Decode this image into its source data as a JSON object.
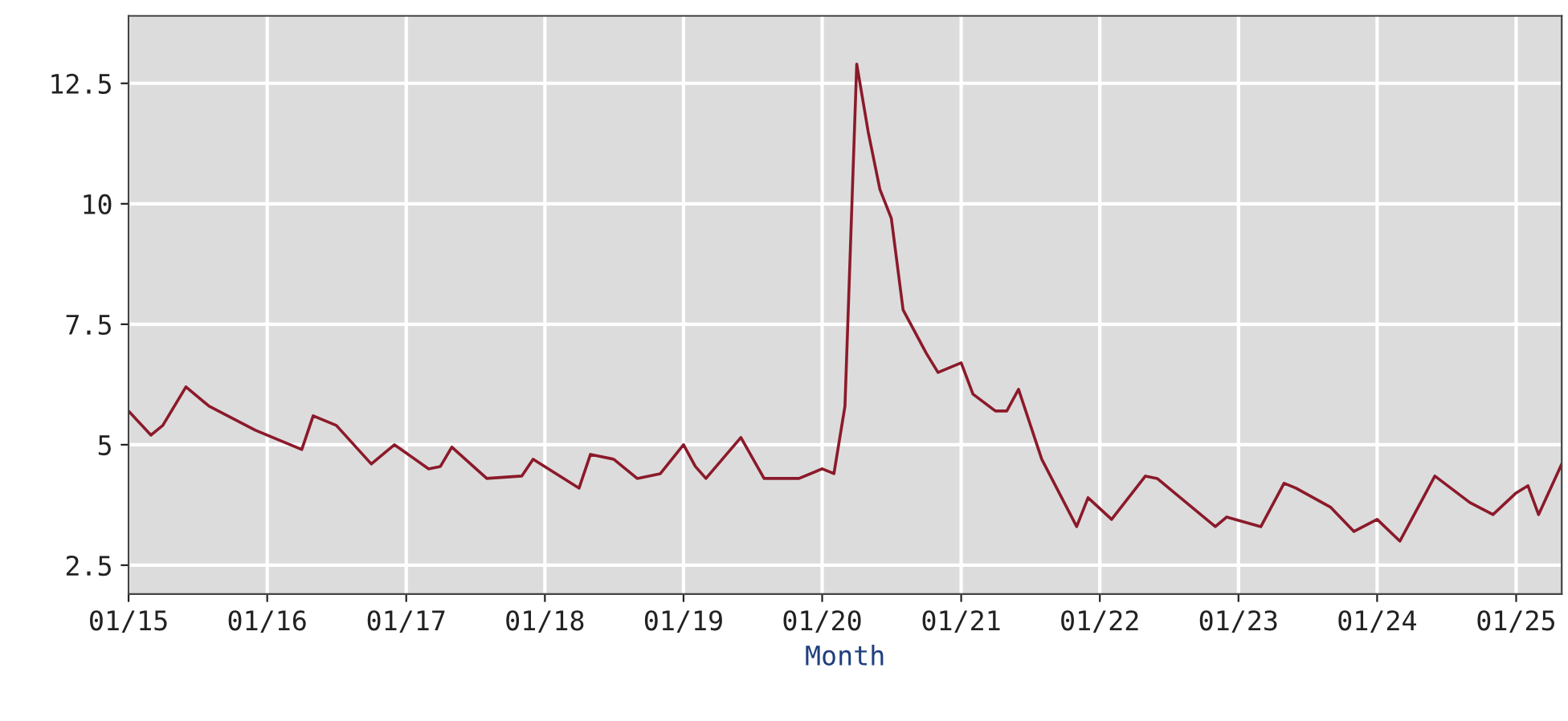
{
  "chart_data": {
    "type": "line",
    "xlabel": "Month",
    "x": [
      "2015-01",
      "2015-03",
      "2015-04",
      "2015-06",
      "2015-08",
      "2015-12",
      "2016-04",
      "2016-05",
      "2016-07",
      "2016-10",
      "2016-12",
      "2017-03",
      "2017-04",
      "2017-05",
      "2017-08",
      "2017-11",
      "2017-12",
      "2018-04",
      "2018-05",
      "2018-07",
      "2018-09",
      "2018-11",
      "2019-01",
      "2019-02",
      "2019-03",
      "2019-06",
      "2019-08",
      "2019-11",
      "2020-01",
      "2020-02",
      "2020-03",
      "2020-04",
      "2020-05",
      "2020-06",
      "2020-07",
      "2020-08",
      "2020-10",
      "2020-11",
      "2021-01",
      "2021-02",
      "2021-04",
      "2021-05",
      "2021-06",
      "2021-08",
      "2021-11",
      "2021-12",
      "2022-02",
      "2022-05",
      "2022-06",
      "2022-08",
      "2022-11",
      "2022-12",
      "2023-03",
      "2023-05",
      "2023-06",
      "2023-09",
      "2023-11",
      "2024-01",
      "2024-03",
      "2024-06",
      "2024-09",
      "2024-11",
      "2025-01",
      "2025-02",
      "2025-03",
      "2025-05"
    ],
    "series": [
      {
        "color": "#8b1a2a",
        "values": [
          5.7,
          5.2,
          5.4,
          6.2,
          5.8,
          5.3,
          4.9,
          5.6,
          5.4,
          4.6,
          5.0,
          4.5,
          4.55,
          4.95,
          4.3,
          4.35,
          4.7,
          4.1,
          4.8,
          4.7,
          4.3,
          4.4,
          5.0,
          4.55,
          4.3,
          5.15,
          4.3,
          4.3,
          4.5,
          4.4,
          5.8,
          12.9,
          11.5,
          10.3,
          9.7,
          7.8,
          6.9,
          6.5,
          6.7,
          6.05,
          5.7,
          5.7,
          6.15,
          4.7,
          3.3,
          3.9,
          3.45,
          4.35,
          4.3,
          3.9,
          3.3,
          3.5,
          3.3,
          4.2,
          4.1,
          3.7,
          3.2,
          3.45,
          3.0,
          4.35,
          3.8,
          3.55,
          4.0,
          4.15,
          3.55,
          4.6
        ]
      }
    ],
    "xlim": [
      "2015-01",
      "2025-05"
    ],
    "xticks": [
      {
        "value": "2015-01",
        "label": "01/15"
      },
      {
        "value": "2016-01",
        "label": "01/16"
      },
      {
        "value": "2017-01",
        "label": "01/17"
      },
      {
        "value": "2018-01",
        "label": "01/18"
      },
      {
        "value": "2019-01",
        "label": "01/19"
      },
      {
        "value": "2020-01",
        "label": "01/20"
      },
      {
        "value": "2021-01",
        "label": "01/21"
      },
      {
        "value": "2022-01",
        "label": "01/22"
      },
      {
        "value": "2023-01",
        "label": "01/23"
      },
      {
        "value": "2024-01",
        "label": "01/24"
      },
      {
        "value": "2025-01",
        "label": "01/25"
      }
    ],
    "ylim": [
      1.9,
      13.9
    ],
    "yticks": [
      2.5,
      5,
      7.5,
      10,
      12.5
    ],
    "grid": true
  }
}
